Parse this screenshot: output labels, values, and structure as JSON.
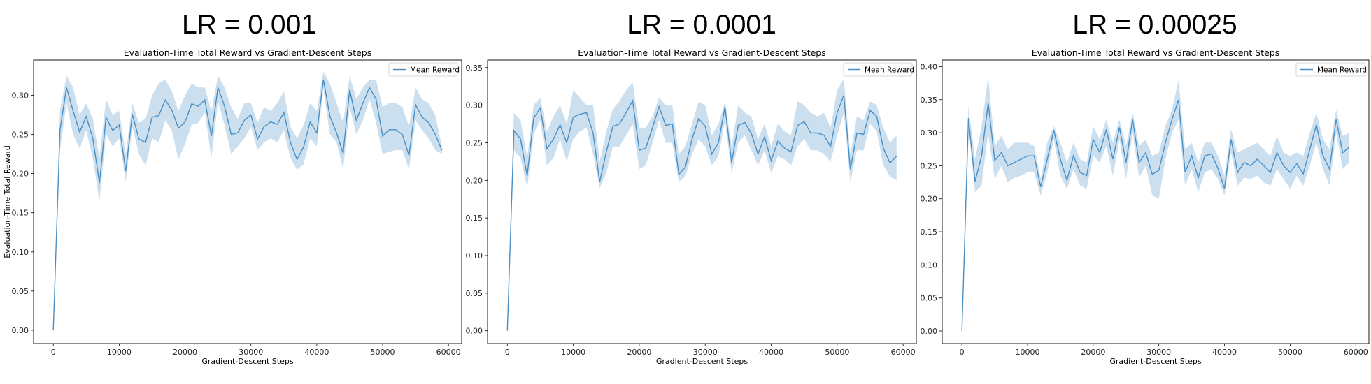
{
  "figure_titles": [
    "LR = 0.001",
    "LR = 0.0001",
    "LR = 0.00025"
  ],
  "colors": {
    "line": "#4a8fc4",
    "band": "#b9d4ea"
  },
  "chart_data": [
    {
      "type": "line",
      "title": "Evaluation-Time Total Reward vs Gradient-Descent Steps",
      "xlabel": "Gradient-Descent Steps",
      "ylabel": "Evaluation-Time Total Reward",
      "xlim": [
        -3000,
        62000
      ],
      "ylim": [
        -0.017,
        0.345
      ],
      "xticks": [
        0,
        10000,
        20000,
        30000,
        40000,
        50000,
        60000
      ],
      "yticks": [
        "0.00",
        "0.05",
        "0.10",
        "0.15",
        "0.20",
        "0.25",
        "0.30"
      ],
      "legend": "upper right",
      "series": [
        {
          "name": "Mean Reward",
          "x": [
            0,
            1000,
            2000,
            3000,
            4000,
            5000,
            6000,
            7000,
            8000,
            9000,
            10000,
            11000,
            12000,
            13000,
            14000,
            15000,
            16000,
            17000,
            18000,
            19000,
            20000,
            21000,
            22000,
            23000,
            24000,
            25000,
            26000,
            27000,
            28000,
            29000,
            30000,
            31000,
            32000,
            33000,
            34000,
            35000,
            36000,
            37000,
            38000,
            39000,
            40000,
            41000,
            42000,
            43000,
            44000,
            45000,
            46000,
            47000,
            48000,
            49000,
            50000,
            51000,
            52000,
            53000,
            54000,
            55000,
            56000,
            57000,
            58000,
            59000
          ],
          "y": [
            0.0,
            0.255,
            0.31,
            0.28,
            0.253,
            0.273,
            0.245,
            0.188,
            0.272,
            0.255,
            0.262,
            0.203,
            0.276,
            0.244,
            0.24,
            0.272,
            0.274,
            0.294,
            0.281,
            0.258,
            0.266,
            0.289,
            0.286,
            0.294,
            0.248,
            0.31,
            0.286,
            0.25,
            0.252,
            0.268,
            0.275,
            0.244,
            0.26,
            0.266,
            0.263,
            0.278,
            0.24,
            0.218,
            0.234,
            0.266,
            0.252,
            0.32,
            0.273,
            0.252,
            0.226,
            0.307,
            0.268,
            0.29,
            0.31,
            0.295,
            0.248,
            0.256,
            0.256,
            0.25,
            0.223,
            0.288,
            0.272,
            0.265,
            0.25,
            0.23
          ],
          "upper": [
            0.0,
            0.28,
            0.325,
            0.31,
            0.275,
            0.29,
            0.27,
            0.22,
            0.295,
            0.275,
            0.28,
            0.225,
            0.29,
            0.265,
            0.27,
            0.3,
            0.315,
            0.32,
            0.305,
            0.28,
            0.3,
            0.315,
            0.31,
            0.31,
            0.28,
            0.325,
            0.31,
            0.285,
            0.27,
            0.29,
            0.29,
            0.265,
            0.285,
            0.28,
            0.29,
            0.305,
            0.26,
            0.245,
            0.262,
            0.29,
            0.28,
            0.33,
            0.315,
            0.29,
            0.265,
            0.325,
            0.295,
            0.31,
            0.32,
            0.32,
            0.285,
            0.29,
            0.29,
            0.285,
            0.26,
            0.31,
            0.295,
            0.29,
            0.275,
            0.235
          ],
          "lower": [
            0.0,
            0.23,
            0.29,
            0.25,
            0.232,
            0.255,
            0.22,
            0.165,
            0.25,
            0.235,
            0.245,
            0.19,
            0.26,
            0.225,
            0.21,
            0.245,
            0.24,
            0.268,
            0.255,
            0.218,
            0.238,
            0.262,
            0.265,
            0.278,
            0.22,
            0.292,
            0.262,
            0.225,
            0.235,
            0.245,
            0.26,
            0.23,
            0.24,
            0.245,
            0.24,
            0.255,
            0.22,
            0.205,
            0.212,
            0.245,
            0.235,
            0.308,
            0.25,
            0.24,
            0.205,
            0.285,
            0.25,
            0.268,
            0.295,
            0.265,
            0.225,
            0.228,
            0.23,
            0.23,
            0.205,
            0.268,
            0.255,
            0.245,
            0.23,
            0.225
          ]
        }
      ]
    },
    {
      "type": "line",
      "title": "Evaluation-Time Total Reward vs Gradient-Descent Steps",
      "xlabel": "Gradient-Descent Steps",
      "ylabel": "",
      "xlim": [
        -3000,
        62000
      ],
      "ylim": [
        -0.017,
        0.36
      ],
      "xticks": [
        0,
        10000,
        20000,
        30000,
        40000,
        50000,
        60000
      ],
      "yticks": [
        "0.00",
        "0.05",
        "0.10",
        "0.15",
        "0.20",
        "0.25",
        "0.30",
        "0.35"
      ],
      "legend": "upper right",
      "series": [
        {
          "name": "Mean Reward",
          "x": [
            0,
            1000,
            2000,
            3000,
            4000,
            5000,
            6000,
            7000,
            8000,
            9000,
            10000,
            11000,
            12000,
            13000,
            14000,
            15000,
            16000,
            17000,
            18000,
            19000,
            20000,
            21000,
            22000,
            23000,
            24000,
            25000,
            26000,
            27000,
            28000,
            29000,
            30000,
            31000,
            32000,
            33000,
            34000,
            35000,
            36000,
            37000,
            38000,
            39000,
            40000,
            41000,
            42000,
            43000,
            44000,
            45000,
            46000,
            47000,
            48000,
            49000,
            50000,
            51000,
            52000,
            53000,
            54000,
            55000,
            56000,
            57000,
            58000,
            59000
          ],
          "y": [
            0.0,
            0.266,
            0.255,
            0.206,
            0.283,
            0.296,
            0.242,
            0.255,
            0.274,
            0.25,
            0.284,
            0.288,
            0.29,
            0.263,
            0.198,
            0.238,
            0.272,
            0.275,
            0.29,
            0.306,
            0.24,
            0.243,
            0.27,
            0.298,
            0.273,
            0.275,
            0.208,
            0.218,
            0.255,
            0.282,
            0.272,
            0.235,
            0.25,
            0.298,
            0.224,
            0.273,
            0.277,
            0.262,
            0.235,
            0.258,
            0.226,
            0.252,
            0.243,
            0.238,
            0.273,
            0.278,
            0.263,
            0.263,
            0.26,
            0.245,
            0.29,
            0.313,
            0.215,
            0.263,
            0.261,
            0.293,
            0.285,
            0.243,
            0.223,
            0.232
          ],
          "upper": [
            0.0,
            0.29,
            0.28,
            0.23,
            0.3,
            0.31,
            0.265,
            0.285,
            0.3,
            0.275,
            0.32,
            0.31,
            0.3,
            0.3,
            0.225,
            0.265,
            0.295,
            0.305,
            0.32,
            0.33,
            0.27,
            0.27,
            0.285,
            0.31,
            0.3,
            0.3,
            0.235,
            0.245,
            0.275,
            0.305,
            0.3,
            0.26,
            0.275,
            0.305,
            0.245,
            0.3,
            0.29,
            0.285,
            0.255,
            0.275,
            0.245,
            0.275,
            0.265,
            0.26,
            0.305,
            0.3,
            0.29,
            0.285,
            0.29,
            0.27,
            0.32,
            0.335,
            0.235,
            0.285,
            0.28,
            0.305,
            0.3,
            0.27,
            0.25,
            0.26
          ],
          "lower": [
            0.0,
            0.24,
            0.23,
            0.19,
            0.262,
            0.28,
            0.22,
            0.23,
            0.255,
            0.225,
            0.255,
            0.265,
            0.27,
            0.235,
            0.19,
            0.21,
            0.245,
            0.245,
            0.26,
            0.275,
            0.215,
            0.22,
            0.25,
            0.28,
            0.25,
            0.25,
            0.198,
            0.205,
            0.235,
            0.255,
            0.245,
            0.22,
            0.232,
            0.28,
            0.21,
            0.25,
            0.26,
            0.24,
            0.22,
            0.24,
            0.21,
            0.232,
            0.228,
            0.22,
            0.245,
            0.255,
            0.24,
            0.24,
            0.235,
            0.225,
            0.26,
            0.29,
            0.198,
            0.24,
            0.24,
            0.275,
            0.265,
            0.22,
            0.205,
            0.2
          ]
        }
      ]
    },
    {
      "type": "line",
      "title": "Evaluation-Time Total Reward vs Gradient-Descent Steps",
      "xlabel": "Gradient-Descent Steps",
      "ylabel": "",
      "xlim": [
        -3000,
        62000
      ],
      "ylim": [
        -0.019,
        0.41
      ],
      "xticks": [
        0,
        10000,
        20000,
        30000,
        40000,
        50000,
        60000
      ],
      "yticks": [
        "0.00",
        "0.05",
        "0.10",
        "0.15",
        "0.20",
        "0.25",
        "0.30",
        "0.35",
        "0.40"
      ],
      "legend": "upper right",
      "series": [
        {
          "name": "Mean Reward",
          "x": [
            0,
            1000,
            2000,
            3000,
            4000,
            5000,
            6000,
            7000,
            8000,
            9000,
            10000,
            11000,
            12000,
            13000,
            14000,
            15000,
            16000,
            17000,
            18000,
            19000,
            20000,
            21000,
            22000,
            23000,
            24000,
            25000,
            26000,
            27000,
            28000,
            29000,
            30000,
            31000,
            32000,
            33000,
            34000,
            35000,
            36000,
            37000,
            38000,
            39000,
            40000,
            41000,
            42000,
            43000,
            44000,
            45000,
            46000,
            47000,
            48000,
            49000,
            50000,
            51000,
            52000,
            53000,
            54000,
            55000,
            56000,
            57000,
            58000,
            59000
          ],
          "y": [
            0.0,
            0.322,
            0.226,
            0.265,
            0.345,
            0.258,
            0.27,
            0.25,
            0.255,
            0.26,
            0.265,
            0.265,
            0.218,
            0.26,
            0.304,
            0.26,
            0.228,
            0.265,
            0.24,
            0.235,
            0.29,
            0.27,
            0.305,
            0.26,
            0.308,
            0.255,
            0.32,
            0.255,
            0.27,
            0.237,
            0.243,
            0.285,
            0.32,
            0.35,
            0.24,
            0.265,
            0.232,
            0.265,
            0.268,
            0.246,
            0.216,
            0.29,
            0.24,
            0.255,
            0.25,
            0.26,
            0.25,
            0.24,
            0.27,
            0.25,
            0.24,
            0.253,
            0.238,
            0.275,
            0.312,
            0.265,
            0.245,
            0.32,
            0.27,
            0.278
          ],
          "upper": [
            0.0,
            0.34,
            0.26,
            0.31,
            0.385,
            0.28,
            0.295,
            0.275,
            0.285,
            0.285,
            0.285,
            0.28,
            0.23,
            0.285,
            0.31,
            0.285,
            0.255,
            0.285,
            0.26,
            0.255,
            0.31,
            0.29,
            0.32,
            0.285,
            0.32,
            0.28,
            0.33,
            0.28,
            0.29,
            0.265,
            0.27,
            0.31,
            0.335,
            0.38,
            0.275,
            0.285,
            0.255,
            0.285,
            0.285,
            0.265,
            0.235,
            0.305,
            0.27,
            0.275,
            0.28,
            0.285,
            0.275,
            0.265,
            0.295,
            0.27,
            0.265,
            0.27,
            0.265,
            0.3,
            0.33,
            0.29,
            0.275,
            0.335,
            0.295,
            0.3
          ],
          "lower": [
            0.0,
            0.31,
            0.21,
            0.22,
            0.3,
            0.23,
            0.25,
            0.225,
            0.232,
            0.235,
            0.24,
            0.24,
            0.205,
            0.24,
            0.29,
            0.235,
            0.215,
            0.245,
            0.22,
            0.215,
            0.265,
            0.255,
            0.28,
            0.235,
            0.29,
            0.23,
            0.3,
            0.232,
            0.25,
            0.205,
            0.2,
            0.26,
            0.3,
            0.32,
            0.22,
            0.245,
            0.21,
            0.24,
            0.245,
            0.23,
            0.205,
            0.27,
            0.22,
            0.232,
            0.23,
            0.235,
            0.225,
            0.22,
            0.245,
            0.23,
            0.215,
            0.235,
            0.22,
            0.25,
            0.285,
            0.245,
            0.22,
            0.3,
            0.245,
            0.255
          ]
        }
      ]
    }
  ]
}
